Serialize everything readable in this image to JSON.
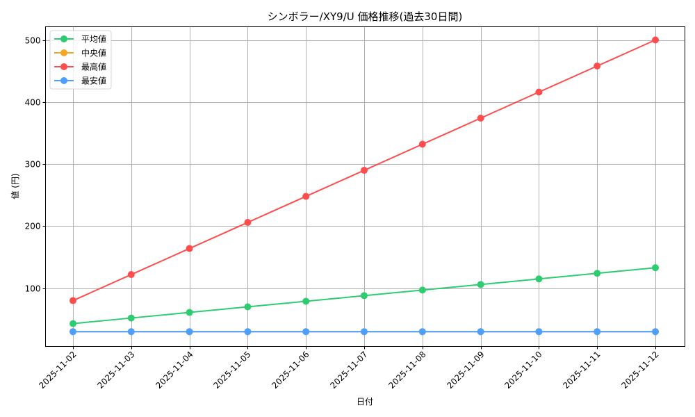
{
  "chart_data": {
    "type": "line",
    "title": "シンボラー/XY9/U 価格推移(過去30日間)",
    "xlabel": "日付",
    "ylabel": "値 (円)",
    "categories": [
      "2025-11-02",
      "2025-11-03",
      "2025-11-04",
      "2025-11-05",
      "2025-11-06",
      "2025-11-07",
      "2025-11-08",
      "2025-11-09",
      "2025-11-10",
      "2025-11-11",
      "2025-11-12"
    ],
    "series": [
      {
        "name": "平均値",
        "color": "#2ecc71",
        "values": [
          43,
          52,
          61,
          70,
          79,
          88,
          97,
          106,
          115,
          124,
          133
        ]
      },
      {
        "name": "中央値",
        "color": "#f5a623",
        "values": [
          30,
          30,
          30,
          30,
          30,
          30,
          30,
          30,
          30,
          30,
          30
        ]
      },
      {
        "name": "最高値",
        "color": "#ff4d4d",
        "values": [
          80,
          122,
          164,
          206,
          248,
          290,
          332,
          374,
          416,
          458,
          500
        ]
      },
      {
        "name": "最安値",
        "color": "#4d9fff",
        "values": [
          30,
          30,
          30,
          30,
          30,
          30,
          30,
          30,
          30,
          30,
          30
        ]
      }
    ],
    "yticks": [
      100,
      200,
      300,
      400,
      500
    ],
    "ylim": [
      7,
      523
    ],
    "grid": true,
    "legend_position": "upper left",
    "x_tick_rotation": 45
  }
}
